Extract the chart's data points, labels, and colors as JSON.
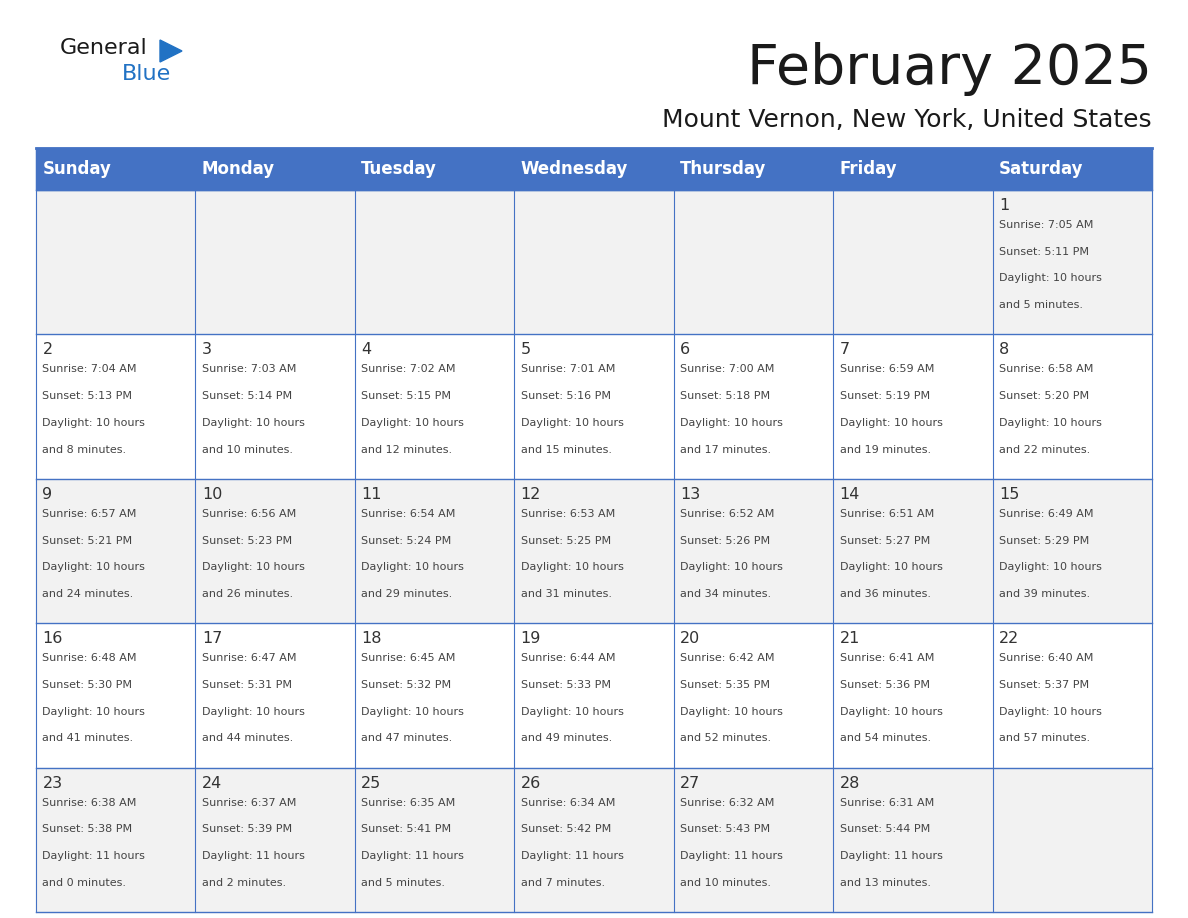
{
  "title": "February 2025",
  "subtitle": "Mount Vernon, New York, United States",
  "days_of_week": [
    "Sunday",
    "Monday",
    "Tuesday",
    "Wednesday",
    "Thursday",
    "Friday",
    "Saturday"
  ],
  "header_bg": "#4472C4",
  "header_text_color": "#FFFFFF",
  "cell_bg_white": "#FFFFFF",
  "cell_bg_gray": "#F2F2F2",
  "cell_text_color": "#444444",
  "day_num_color": "#333333",
  "line_color": "#4472C4",
  "title_color": "#1a1a1a",
  "subtitle_color": "#1a1a1a",
  "logo_general_color": "#1a1a1a",
  "logo_blue_color": "#2172C4",
  "calendar": [
    [
      null,
      null,
      null,
      null,
      null,
      null,
      {
        "day": 1,
        "sunrise": "7:05 AM",
        "sunset": "5:11 PM",
        "daylight": "10 hours and 5 minutes."
      }
    ],
    [
      {
        "day": 2,
        "sunrise": "7:04 AM",
        "sunset": "5:13 PM",
        "daylight": "10 hours and 8 minutes."
      },
      {
        "day": 3,
        "sunrise": "7:03 AM",
        "sunset": "5:14 PM",
        "daylight": "10 hours and 10 minutes."
      },
      {
        "day": 4,
        "sunrise": "7:02 AM",
        "sunset": "5:15 PM",
        "daylight": "10 hours and 12 minutes."
      },
      {
        "day": 5,
        "sunrise": "7:01 AM",
        "sunset": "5:16 PM",
        "daylight": "10 hours and 15 minutes."
      },
      {
        "day": 6,
        "sunrise": "7:00 AM",
        "sunset": "5:18 PM",
        "daylight": "10 hours and 17 minutes."
      },
      {
        "day": 7,
        "sunrise": "6:59 AM",
        "sunset": "5:19 PM",
        "daylight": "10 hours and 19 minutes."
      },
      {
        "day": 8,
        "sunrise": "6:58 AM",
        "sunset": "5:20 PM",
        "daylight": "10 hours and 22 minutes."
      }
    ],
    [
      {
        "day": 9,
        "sunrise": "6:57 AM",
        "sunset": "5:21 PM",
        "daylight": "10 hours and 24 minutes."
      },
      {
        "day": 10,
        "sunrise": "6:56 AM",
        "sunset": "5:23 PM",
        "daylight": "10 hours and 26 minutes."
      },
      {
        "day": 11,
        "sunrise": "6:54 AM",
        "sunset": "5:24 PM",
        "daylight": "10 hours and 29 minutes."
      },
      {
        "day": 12,
        "sunrise": "6:53 AM",
        "sunset": "5:25 PM",
        "daylight": "10 hours and 31 minutes."
      },
      {
        "day": 13,
        "sunrise": "6:52 AM",
        "sunset": "5:26 PM",
        "daylight": "10 hours and 34 minutes."
      },
      {
        "day": 14,
        "sunrise": "6:51 AM",
        "sunset": "5:27 PM",
        "daylight": "10 hours and 36 minutes."
      },
      {
        "day": 15,
        "sunrise": "6:49 AM",
        "sunset": "5:29 PM",
        "daylight": "10 hours and 39 minutes."
      }
    ],
    [
      {
        "day": 16,
        "sunrise": "6:48 AM",
        "sunset": "5:30 PM",
        "daylight": "10 hours and 41 minutes."
      },
      {
        "day": 17,
        "sunrise": "6:47 AM",
        "sunset": "5:31 PM",
        "daylight": "10 hours and 44 minutes."
      },
      {
        "day": 18,
        "sunrise": "6:45 AM",
        "sunset": "5:32 PM",
        "daylight": "10 hours and 47 minutes."
      },
      {
        "day": 19,
        "sunrise": "6:44 AM",
        "sunset": "5:33 PM",
        "daylight": "10 hours and 49 minutes."
      },
      {
        "day": 20,
        "sunrise": "6:42 AM",
        "sunset": "5:35 PM",
        "daylight": "10 hours and 52 minutes."
      },
      {
        "day": 21,
        "sunrise": "6:41 AM",
        "sunset": "5:36 PM",
        "daylight": "10 hours and 54 minutes."
      },
      {
        "day": 22,
        "sunrise": "6:40 AM",
        "sunset": "5:37 PM",
        "daylight": "10 hours and 57 minutes."
      }
    ],
    [
      {
        "day": 23,
        "sunrise": "6:38 AM",
        "sunset": "5:38 PM",
        "daylight": "11 hours and 0 minutes."
      },
      {
        "day": 24,
        "sunrise": "6:37 AM",
        "sunset": "5:39 PM",
        "daylight": "11 hours and 2 minutes."
      },
      {
        "day": 25,
        "sunrise": "6:35 AM",
        "sunset": "5:41 PM",
        "daylight": "11 hours and 5 minutes."
      },
      {
        "day": 26,
        "sunrise": "6:34 AM",
        "sunset": "5:42 PM",
        "daylight": "11 hours and 7 minutes."
      },
      {
        "day": 27,
        "sunrise": "6:32 AM",
        "sunset": "5:43 PM",
        "daylight": "11 hours and 10 minutes."
      },
      {
        "day": 28,
        "sunrise": "6:31 AM",
        "sunset": "5:44 PM",
        "daylight": "11 hours and 13 minutes."
      },
      null
    ]
  ],
  "num_weeks": 5,
  "num_cols": 7,
  "fig_width": 11.88,
  "fig_height": 9.18
}
